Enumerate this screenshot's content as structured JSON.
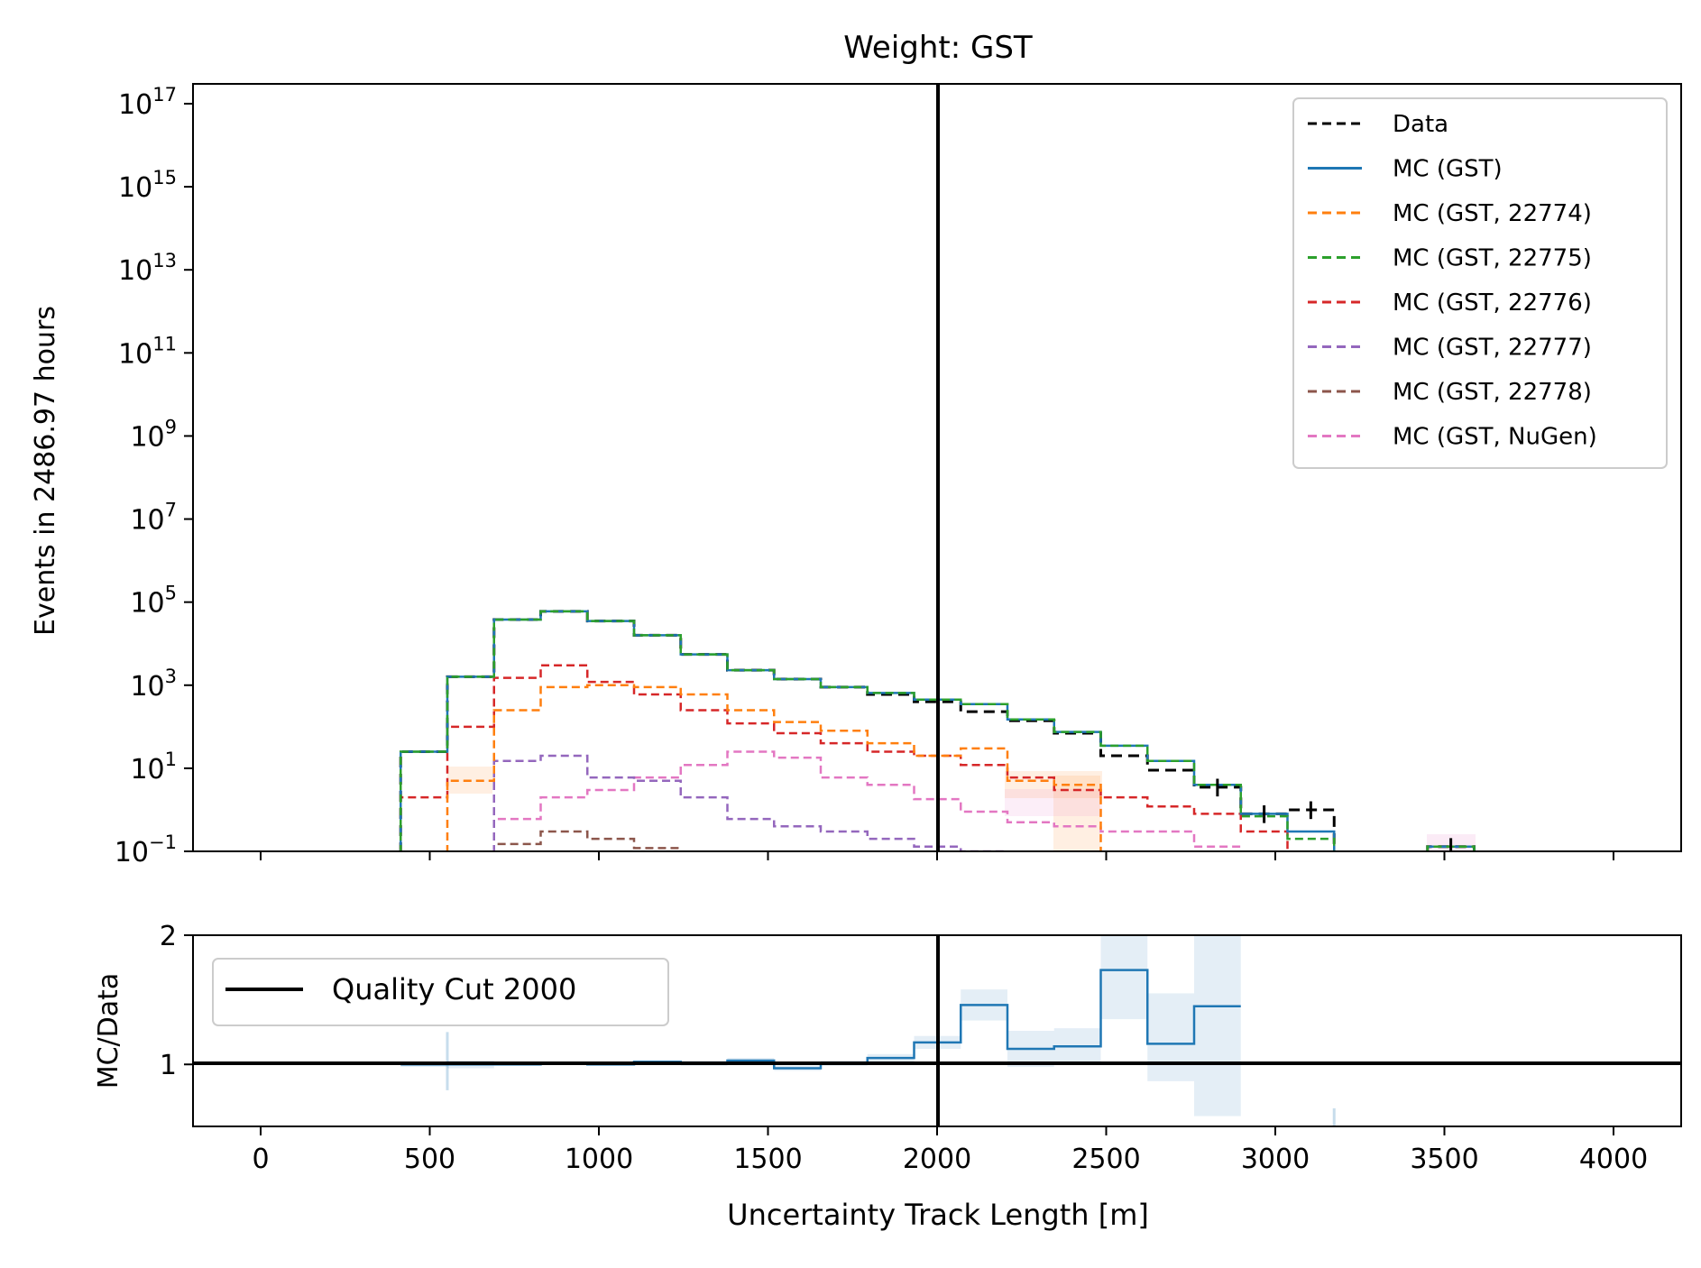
{
  "chart_data": [
    {
      "type": "histogram",
      "title": "Weight: GST",
      "xlabel": "",
      "ylabel": "Events in 2486.97 hours",
      "xlim": [
        -200,
        4200
      ],
      "ylim": [
        0.1,
        3e+17
      ],
      "yscale": "log",
      "ytick_labels": [
        {
          "base": "10",
          "exp": "−1",
          "value": 0.1
        },
        {
          "base": "10",
          "exp": "1",
          "value": 10
        },
        {
          "base": "10",
          "exp": "3",
          "value": 1000
        },
        {
          "base": "10",
          "exp": "5",
          "value": 100000
        },
        {
          "base": "10",
          "exp": "7",
          "value": 10000000.0
        },
        {
          "base": "10",
          "exp": "9",
          "value": 1000000000.0
        },
        {
          "base": "10",
          "exp": "11",
          "value": 100000000000.0
        },
        {
          "base": "10",
          "exp": "13",
          "value": 10000000000000.0
        },
        {
          "base": "10",
          "exp": "15",
          "value": 1000000000000000.0
        },
        {
          "base": "10",
          "exp": "17",
          "value": 1e+17
        }
      ],
      "vline_x": 2000,
      "legend_position": "top-right",
      "bin_edges": [
        414,
        552,
        690,
        828,
        966,
        1104,
        1242,
        1380,
        1518,
        1656,
        1794,
        1932,
        2070,
        2208,
        2346,
        2484,
        2622,
        2760,
        2898,
        3036,
        3174,
        3312,
        3450,
        3588
      ],
      "series": [
        {
          "name": "Data",
          "color": "#000000",
          "style": "dashed",
          "values": [
            25,
            1600,
            38000,
            60000,
            35000,
            16000,
            5500,
            2300,
            1400,
            900,
            600,
            400,
            230,
            140,
            70,
            20,
            9,
            3.5,
            0.8,
            1.0,
            null,
            null,
            0.13
          ]
        },
        {
          "name": "MC (GST)",
          "color": "#1f77b4",
          "style": "solid",
          "values": [
            25,
            1600,
            38000,
            60000,
            35000,
            16000,
            5500,
            2300,
            1400,
            900,
            650,
            450,
            350,
            150,
            75,
            35,
            15,
            4,
            0.8,
            0.3,
            null,
            null,
            0.13
          ]
        },
        {
          "name": "MC (GST, 22774)",
          "color": "#ff7f0e",
          "style": "dashed",
          "values": [
            null,
            5,
            250,
            900,
            1000,
            900,
            600,
            250,
            130,
            80,
            40,
            20,
            30,
            5,
            4,
            null,
            null,
            null,
            null,
            null,
            null,
            null,
            null
          ]
        },
        {
          "name": "MC (GST, 22775)",
          "color": "#2ca02c",
          "style": "dashed",
          "values": [
            25,
            1600,
            38000,
            60000,
            35000,
            16000,
            5500,
            2300,
            1400,
            900,
            650,
            450,
            350,
            150,
            75,
            35,
            15,
            4,
            0.7,
            0.2,
            null,
            null,
            0.13
          ]
        },
        {
          "name": "MC (GST, 22776)",
          "color": "#d62728",
          "style": "dashed",
          "values": [
            2,
            100,
            1500,
            3000,
            1200,
            600,
            250,
            120,
            70,
            40,
            25,
            20,
            12,
            6,
            3,
            2,
            1.2,
            0.8,
            0.3,
            null,
            null,
            null,
            null
          ]
        },
        {
          "name": "MC (GST, 22777)",
          "color": "#9467bd",
          "style": "dashed",
          "values": [
            null,
            null,
            15,
            20,
            6,
            5,
            2,
            0.6,
            0.4,
            0.3,
            0.2,
            0.13,
            0.1,
            null,
            null,
            null,
            null,
            null,
            null,
            null,
            null,
            null,
            null
          ]
        },
        {
          "name": "MC (GST, 22778)",
          "color": "#8c564b",
          "style": "dashed",
          "values": [
            null,
            null,
            0.15,
            0.3,
            0.2,
            0.12,
            null,
            null,
            null,
            null,
            null,
            null,
            null,
            null,
            null,
            null,
            null,
            null,
            null,
            null,
            null,
            null,
            null
          ]
        },
        {
          "name": "MC (GST, NuGen)",
          "color": "#e377c2",
          "style": "dashed",
          "values": [
            null,
            null,
            0.6,
            2,
            3,
            6,
            12,
            25,
            18,
            6,
            4,
            1.8,
            0.9,
            0.5,
            0.4,
            0.3,
            0.3,
            0.13,
            null,
            null,
            null,
            null,
            0.13
          ]
        }
      ]
    },
    {
      "type": "step",
      "title": "",
      "xlabel": "Uncertainty Track Length [m]",
      "ylabel": "MC/Data",
      "xlim": [
        -200,
        4200
      ],
      "ylim": [
        0.52,
        2
      ],
      "ytick_labels": [
        "1",
        "2"
      ],
      "xtick_labels": [
        "0",
        "500",
        "1000",
        "1500",
        "2000",
        "2500",
        "3000",
        "3500",
        "4000"
      ],
      "hline_y": 1,
      "vline_x": 2000,
      "legend": [
        {
          "name": "Quality Cut 2000",
          "color": "#000000"
        }
      ],
      "legend_position": "top-left",
      "bin_edges": [
        414,
        552,
        690,
        828,
        966,
        1104,
        1242,
        1380,
        1518,
        1656,
        1794,
        1932,
        2070,
        2208,
        2346,
        2484,
        2622,
        2760,
        2898
      ],
      "series": [
        {
          "name": "MC/Data",
          "color": "#1f77b4",
          "values": [
            1.0,
            1.0,
            1.0,
            1.01,
            1.0,
            1.02,
            1.01,
            1.03,
            0.97,
            1.01,
            1.05,
            1.17,
            1.46,
            1.12,
            1.14,
            1.73,
            1.16,
            1.45
          ],
          "err_low": [
            0.98,
            0.97,
            0.99,
            1.0,
            0.99,
            1.01,
            0.99,
            1.01,
            0.95,
            0.99,
            1.02,
            1.12,
            1.34,
            0.98,
            1.0,
            1.35,
            0.87,
            0.6
          ],
          "err_high": [
            1.02,
            1.03,
            1.01,
            1.02,
            1.01,
            1.03,
            1.03,
            1.05,
            0.99,
            1.03,
            1.08,
            1.22,
            1.58,
            1.26,
            1.28,
            2.0,
            1.55,
            2.0
          ]
        }
      ]
    }
  ]
}
